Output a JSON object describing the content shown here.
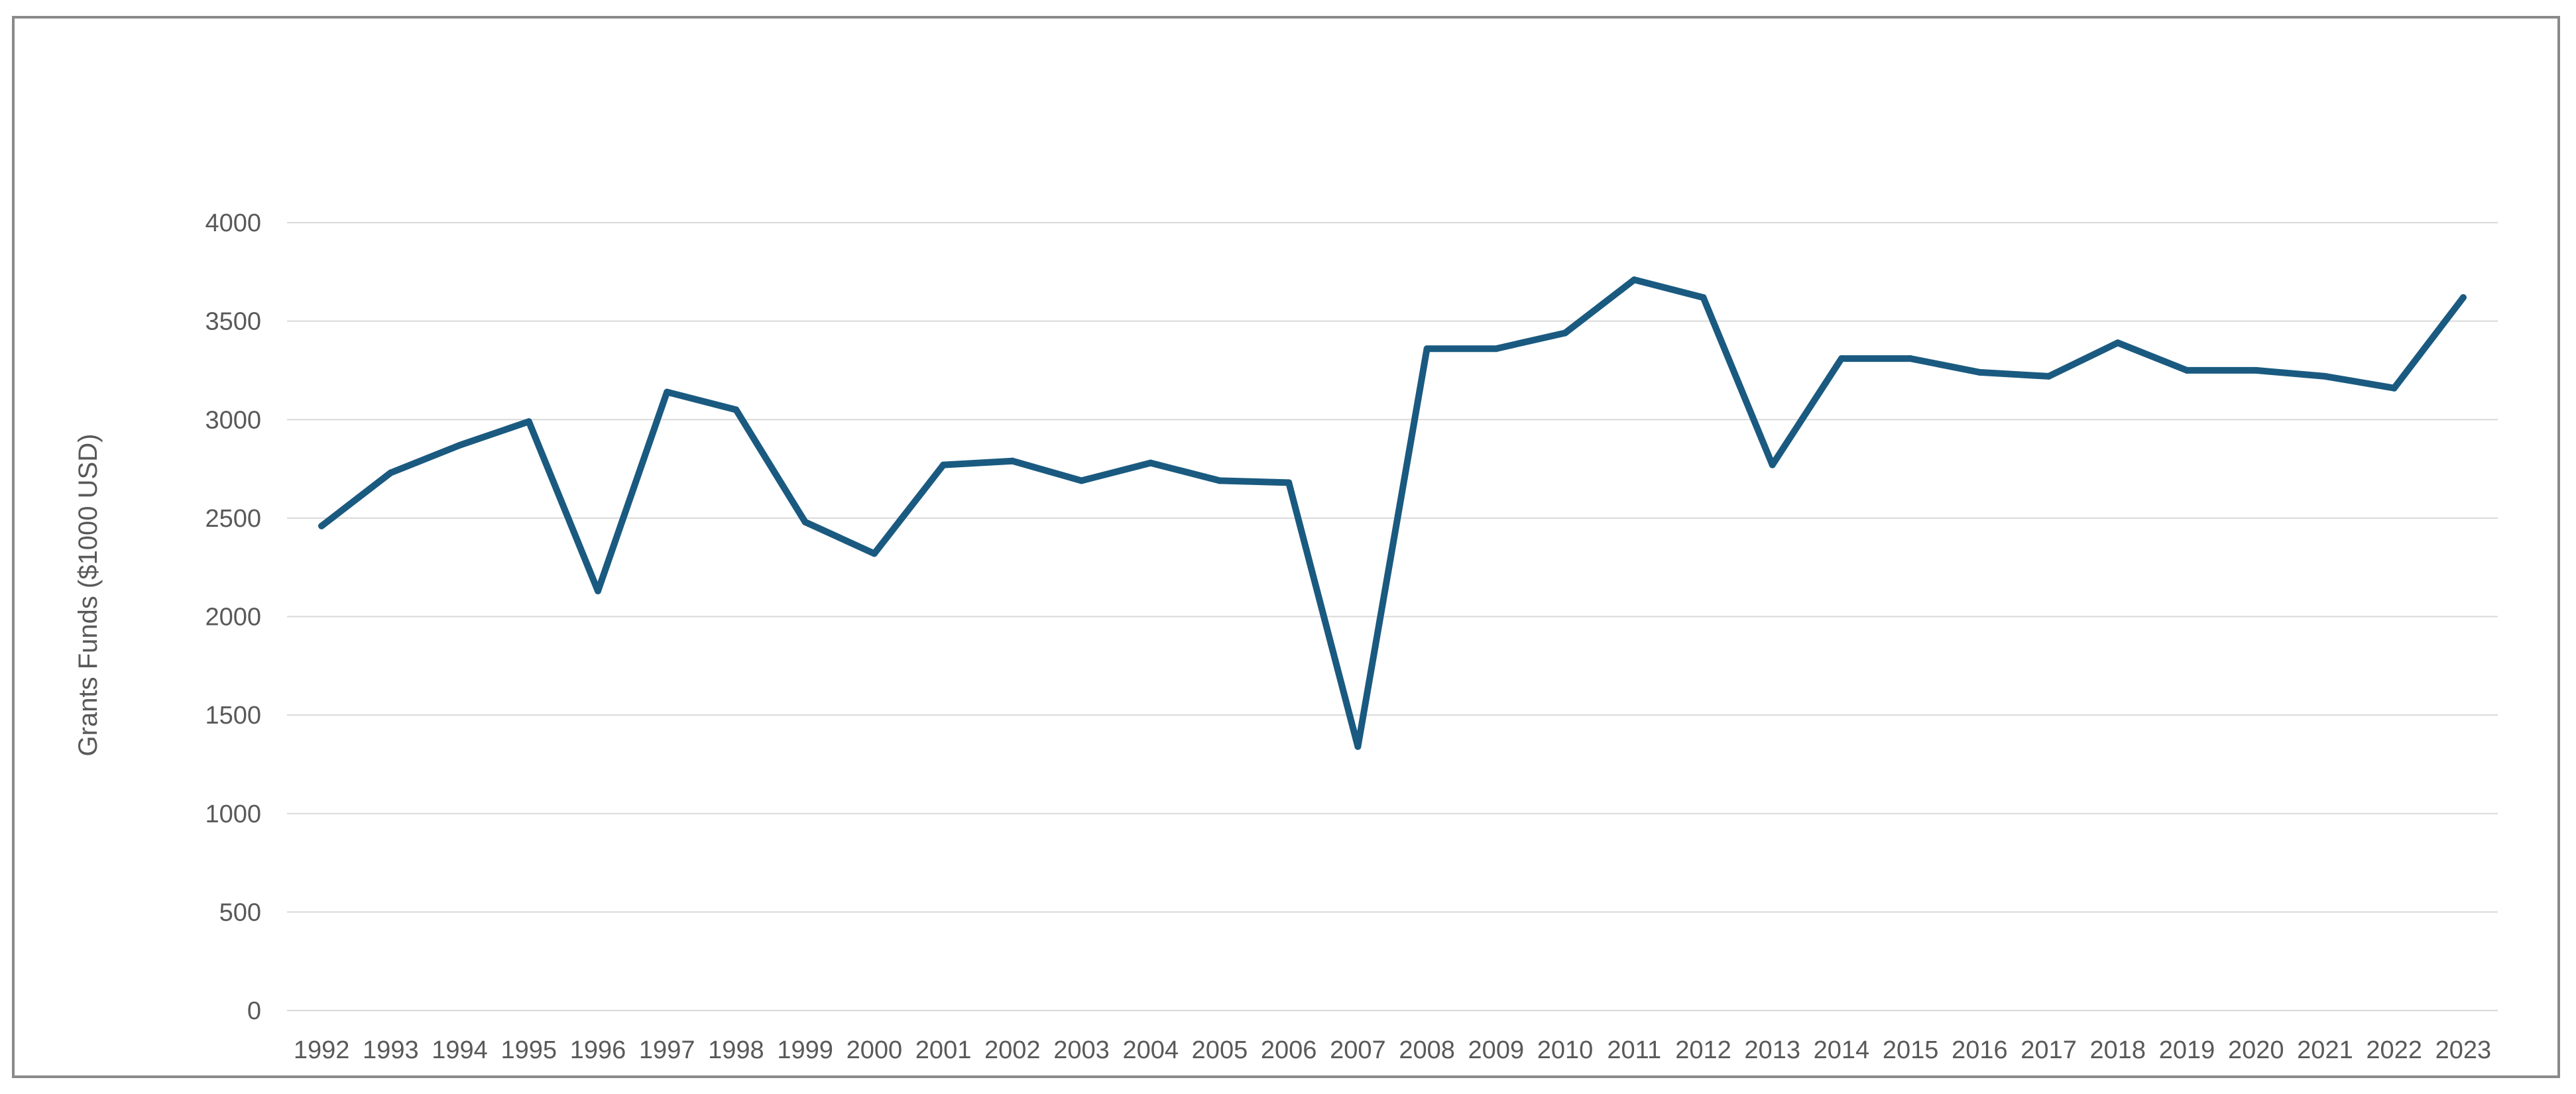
{
  "chart_data": {
    "type": "line",
    "title": "",
    "xlabel": "",
    "ylabel": "Grants Funds ($1000 USD)",
    "ylim": [
      0,
      4000
    ],
    "yticks": [
      0,
      500,
      1000,
      1500,
      2000,
      2500,
      3000,
      3500,
      4000
    ],
    "ytick_labels": [
      "0",
      "500",
      "1000",
      "1500",
      "2000",
      "2500",
      "3000",
      "3500",
      "4000"
    ],
    "grid": true,
    "legend": "none",
    "categories": [
      "1992",
      "1993",
      "1994",
      "1995",
      "1996",
      "1997",
      "1998",
      "1999",
      "2000",
      "2001",
      "2002",
      "2003",
      "2004",
      "2005",
      "2006",
      "2007",
      "2008",
      "2009",
      "2010",
      "2011",
      "2012",
      "2013",
      "2014",
      "2015",
      "2016",
      "2017",
      "2018",
      "2019",
      "2020",
      "2021",
      "2022",
      "2023"
    ],
    "series": [
      {
        "color": "#1a5a80",
        "values": [
          2460,
          2730,
          2870,
          2990,
          2130,
          3140,
          3050,
          2480,
          2320,
          2770,
          2790,
          2690,
          2780,
          2690,
          2680,
          1340,
          3360,
          3360,
          3440,
          3710,
          3620,
          2770,
          3310,
          3310,
          3240,
          3220,
          3390,
          3250,
          3250,
          3220,
          3160,
          3620
        ]
      }
    ]
  },
  "colors": {
    "line": "#1a5a80",
    "grid": "#d9d9d9",
    "text": "#595959",
    "frame": "#8a8a8a"
  }
}
